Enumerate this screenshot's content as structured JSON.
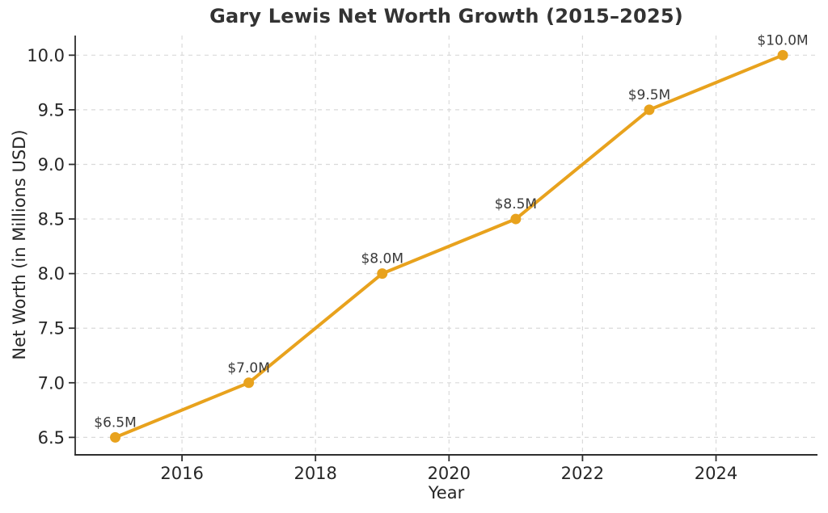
{
  "chart_data": {
    "type": "line",
    "title": "Gary Lewis Net Worth Growth (2015–2025)",
    "xlabel": "Year",
    "ylabel": "Net Worth (in Millions USD)",
    "x": [
      2015,
      2017,
      2019,
      2021,
      2023,
      2025
    ],
    "series": [
      {
        "name": "Net Worth",
        "values": [
          6.5,
          7.0,
          8.0,
          8.5,
          9.5,
          10.0
        ]
      }
    ],
    "point_labels": [
      "$6.5M",
      "$7.0M",
      "$8.0M",
      "$8.5M",
      "$9.5M",
      "$10.0M"
    ],
    "x_ticks": [
      2016,
      2018,
      2020,
      2022,
      2024
    ],
    "y_ticks": [
      6.5,
      7.0,
      7.5,
      8.0,
      8.5,
      9.0,
      9.5,
      10.0
    ],
    "y_tick_labels": [
      "6.5",
      "7.0",
      "7.5",
      "8.0",
      "8.5",
      "9.0",
      "9.5",
      "10.0"
    ],
    "xlim": [
      2014.4,
      2025.52
    ],
    "ylim": [
      6.34,
      10.18
    ],
    "grid": true,
    "grid_style": "dashed",
    "legend": "none",
    "colors": {
      "line": "#E8A21D",
      "marker": "#E8A21D",
      "grid": "#DADADA",
      "axis": "#2E2E2E",
      "tick_label": "#262626",
      "annotation": "#3A3A3A",
      "title": "#333333",
      "background": "#FFFFFF"
    }
  }
}
